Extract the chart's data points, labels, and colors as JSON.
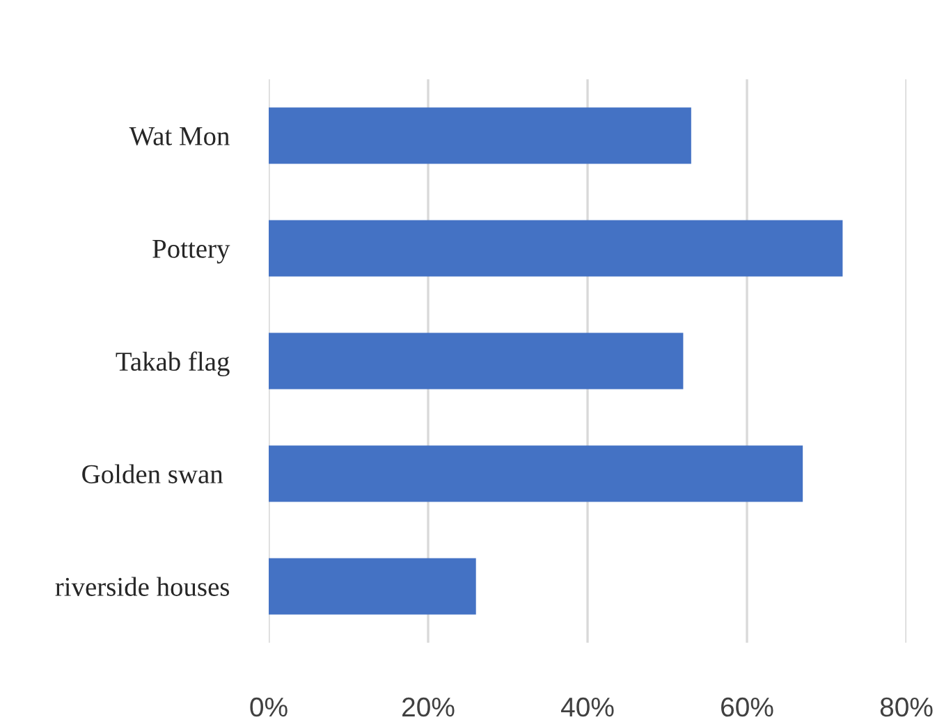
{
  "chart_data": {
    "type": "bar",
    "orientation": "horizontal",
    "categories": [
      "Wat Mon",
      "Pottery",
      "Takab flag",
      "Golden swan ",
      "riverside houses"
    ],
    "values": [
      53,
      72,
      52,
      67,
      26
    ],
    "color": "#4472c4",
    "xlim": [
      0,
      80
    ],
    "xticks": [
      {
        "value": 0,
        "label": "0%"
      },
      {
        "value": 20,
        "label": "20%"
      },
      {
        "value": 40,
        "label": "40%"
      },
      {
        "value": 60,
        "label": "60%"
      },
      {
        "value": 80,
        "label": "80%"
      }
    ],
    "grid": "x"
  }
}
